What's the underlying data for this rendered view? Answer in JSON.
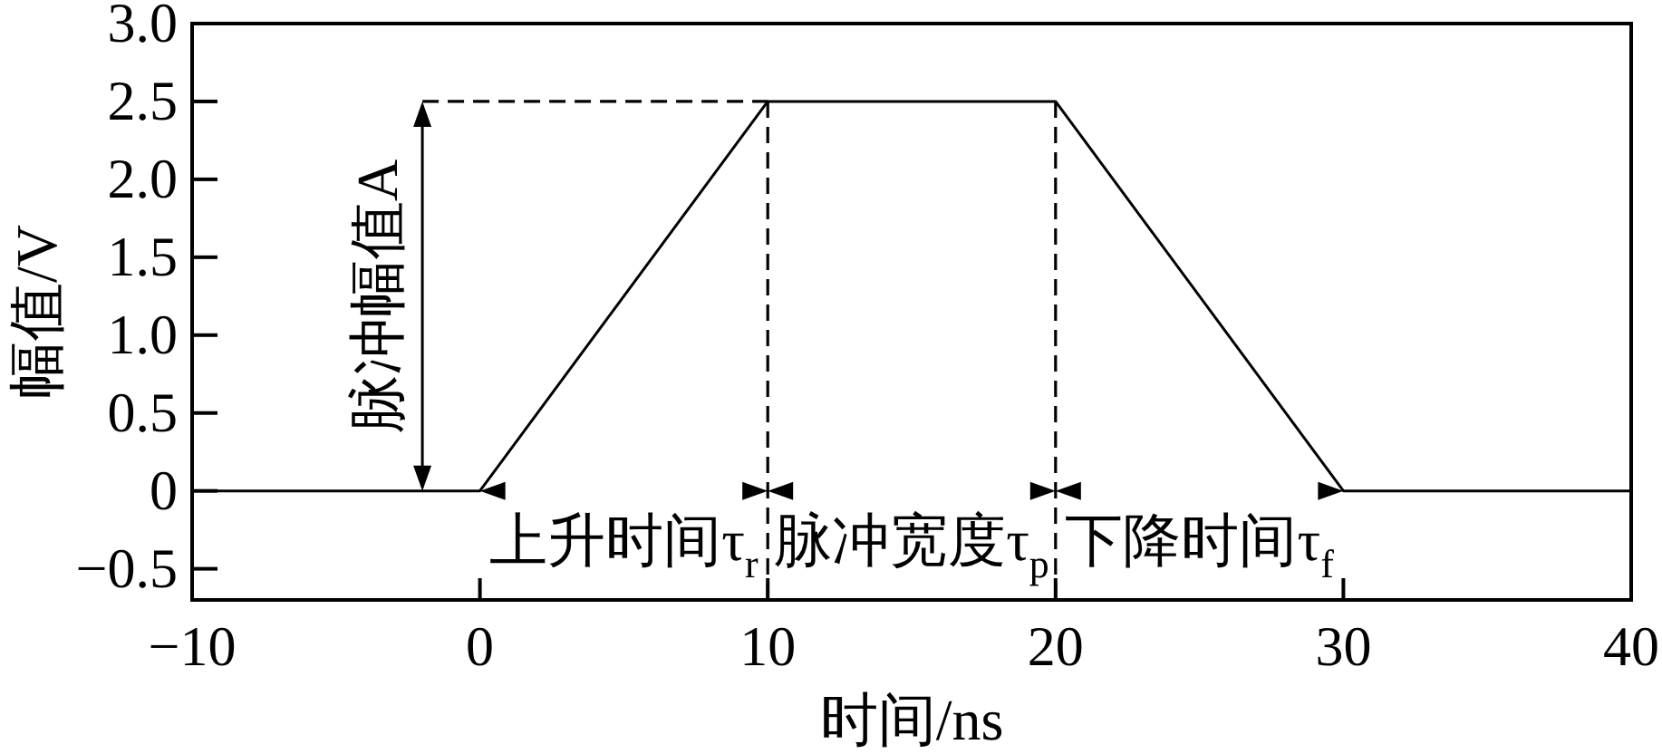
{
  "chart_data": {
    "type": "line",
    "xlabel": "时间/ns",
    "ylabel": "幅值/V",
    "xlim": [
      -10,
      40
    ],
    "ylim": [
      -0.7,
      3.0
    ],
    "xticks": [
      {
        "value": -10,
        "label": "−10"
      },
      0,
      10,
      20,
      30,
      40
    ],
    "yticks": [
      {
        "value": -0.5,
        "label": "−0.5"
      },
      0,
      0.5,
      {
        "value": 1,
        "label": "1.0"
      },
      1.5,
      {
        "value": 2,
        "label": "2.0"
      },
      2.5,
      {
        "value": 3,
        "label": "3.0"
      }
    ],
    "series": [
      {
        "color": "#000000",
        "x": [
          -10,
          0,
          10,
          20,
          30,
          40
        ],
        "values": [
          0,
          0,
          2.5,
          2.5,
          0,
          0
        ]
      },
      {
        "color": "#000000",
        "x": [
          -2,
          10
        ],
        "values": [
          2.5,
          2.5
        ],
        "line_style": "dashed"
      }
    ],
    "ref_lines": [
      {
        "axis": "x",
        "value": 10,
        "color": "#000000",
        "line_style": "dashed"
      },
      {
        "axis": "x",
        "value": 20,
        "color": "#000000",
        "line_style": "dashed"
      }
    ],
    "annotations": [
      "脉冲幅值A",
      "上升时间τ$_{r}$",
      "脉冲宽度τ$_{p}$",
      "下降时间τ$_{f}$"
    ]
  }
}
